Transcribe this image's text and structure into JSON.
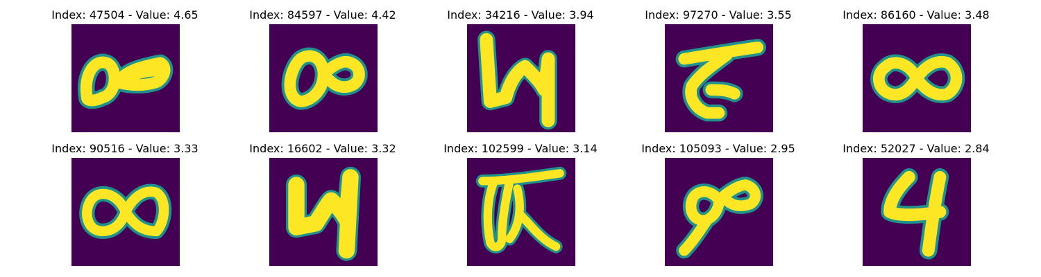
{
  "colors": {
    "background": "#440154",
    "foreground": "#fde725",
    "edge": "#21918c"
  },
  "panels": [
    {
      "title": "Index: 47504 - Value: 4.65",
      "glyph": "loops-horizontal-icon"
    },
    {
      "title": "Index: 84597 - Value: 4.42",
      "glyph": "loops-horizontal-icon"
    },
    {
      "title": "Index: 34216 - Value: 3.94",
      "glyph": "digit-four-open-icon"
    },
    {
      "title": "Index: 97270 - Value: 3.55",
      "glyph": "digit-seven-like-icon"
    },
    {
      "title": "Index: 86160 - Value: 3.48",
      "glyph": "infinity-icon"
    },
    {
      "title": "Index: 90516 - Value: 3.33",
      "glyph": "infinity-icon"
    },
    {
      "title": "Index: 16602 - Value: 3.32",
      "glyph": "digit-four-open-icon"
    },
    {
      "title": "Index: 102599 - Value: 3.14",
      "glyph": "scribble-icon"
    },
    {
      "title": "Index: 105093 - Value: 2.95",
      "glyph": "loops-horizontal-icon"
    },
    {
      "title": "Index: 52027 - Value: 2.84",
      "glyph": "digit-four-icon"
    }
  ]
}
